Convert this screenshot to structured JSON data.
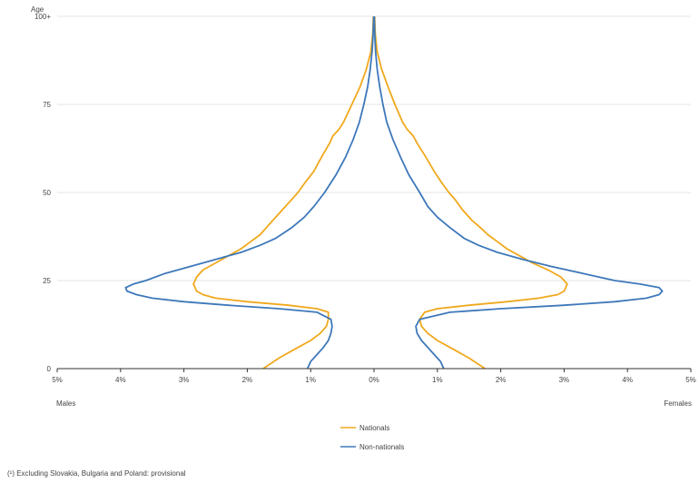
{
  "chart_data": {
    "type": "line",
    "title": "",
    "y_axis_title": "Age",
    "side_labels": {
      "left": "Males",
      "right": "Females"
    },
    "x_range_percent": [
      -5,
      5
    ],
    "y_range_age": [
      0,
      100
    ],
    "x_tick_labels": [
      "5%",
      "4%",
      "3%",
      "2%",
      "1%",
      "0%",
      "1%",
      "2%",
      "3%",
      "4%",
      "5%"
    ],
    "y_ticks": [
      {
        "value": 0,
        "label": "0"
      },
      {
        "value": 25,
        "label": "25"
      },
      {
        "value": 50,
        "label": "50"
      },
      {
        "value": 75,
        "label": "75"
      },
      {
        "value": 100,
        "label": "100+"
      }
    ],
    "grid": true,
    "legend_position": "bottom-center",
    "series": [
      {
        "name": "Nationals",
        "color": "#F0A81C",
        "males": [
          [
            0,
            -1.75
          ],
          [
            3,
            -1.5
          ],
          [
            6,
            -1.2
          ],
          [
            8,
            -1.0
          ],
          [
            10,
            -0.85
          ],
          [
            12,
            -0.75
          ],
          [
            14,
            -0.72
          ],
          [
            16,
            -0.72
          ],
          [
            17,
            -0.9
          ],
          [
            18,
            -1.35
          ],
          [
            19,
            -2.0
          ],
          [
            20,
            -2.5
          ],
          [
            21,
            -2.7
          ],
          [
            22,
            -2.8
          ],
          [
            24,
            -2.85
          ],
          [
            26,
            -2.8
          ],
          [
            28,
            -2.7
          ],
          [
            30,
            -2.5
          ],
          [
            32,
            -2.3
          ],
          [
            34,
            -2.1
          ],
          [
            36,
            -1.95
          ],
          [
            38,
            -1.8
          ],
          [
            40,
            -1.7
          ],
          [
            42,
            -1.6
          ],
          [
            45,
            -1.45
          ],
          [
            48,
            -1.3
          ],
          [
            50,
            -1.2
          ],
          [
            53,
            -1.08
          ],
          [
            56,
            -0.95
          ],
          [
            60,
            -0.83
          ],
          [
            64,
            -0.7
          ],
          [
            66,
            -0.65
          ],
          [
            68,
            -0.55
          ],
          [
            70,
            -0.48
          ],
          [
            75,
            -0.35
          ],
          [
            80,
            -0.22
          ],
          [
            85,
            -0.12
          ],
          [
            90,
            -0.05
          ],
          [
            95,
            -0.02
          ],
          [
            100,
            -0.01
          ]
        ],
        "females": [
          [
            0,
            1.75
          ],
          [
            3,
            1.5
          ],
          [
            6,
            1.2
          ],
          [
            8,
            1.0
          ],
          [
            10,
            0.85
          ],
          [
            12,
            0.75
          ],
          [
            14,
            0.72
          ],
          [
            16,
            0.8
          ],
          [
            17,
            1.0
          ],
          [
            18,
            1.5
          ],
          [
            19,
            2.1
          ],
          [
            20,
            2.6
          ],
          [
            21,
            2.9
          ],
          [
            22,
            3.0
          ],
          [
            24,
            3.05
          ],
          [
            26,
            2.95
          ],
          [
            28,
            2.75
          ],
          [
            30,
            2.5
          ],
          [
            32,
            2.3
          ],
          [
            34,
            2.1
          ],
          [
            36,
            1.95
          ],
          [
            38,
            1.8
          ],
          [
            40,
            1.68
          ],
          [
            42,
            1.55
          ],
          [
            45,
            1.4
          ],
          [
            48,
            1.28
          ],
          [
            50,
            1.18
          ],
          [
            53,
            1.06
          ],
          [
            56,
            0.95
          ],
          [
            60,
            0.82
          ],
          [
            64,
            0.68
          ],
          [
            66,
            0.62
          ],
          [
            68,
            0.52
          ],
          [
            70,
            0.45
          ],
          [
            75,
            0.33
          ],
          [
            80,
            0.22
          ],
          [
            85,
            0.12
          ],
          [
            90,
            0.05
          ],
          [
            95,
            0.02
          ],
          [
            100,
            0.01
          ]
        ]
      },
      {
        "name": "Non-nationals",
        "color": "#3E78BA",
        "males": [
          [
            0,
            -1.05
          ],
          [
            2,
            -1.0
          ],
          [
            4,
            -0.9
          ],
          [
            6,
            -0.8
          ],
          [
            8,
            -0.72
          ],
          [
            10,
            -0.68
          ],
          [
            12,
            -0.66
          ],
          [
            14,
            -0.68
          ],
          [
            16,
            -0.9
          ],
          [
            17,
            -1.5
          ],
          [
            18,
            -2.3
          ],
          [
            19,
            -3.0
          ],
          [
            20,
            -3.5
          ],
          [
            21,
            -3.75
          ],
          [
            22,
            -3.9
          ],
          [
            23,
            -3.92
          ],
          [
            24,
            -3.8
          ],
          [
            25,
            -3.6
          ],
          [
            27,
            -3.3
          ],
          [
            29,
            -2.9
          ],
          [
            31,
            -2.5
          ],
          [
            33,
            -2.1
          ],
          [
            35,
            -1.8
          ],
          [
            37,
            -1.55
          ],
          [
            40,
            -1.3
          ],
          [
            43,
            -1.1
          ],
          [
            46,
            -0.95
          ],
          [
            50,
            -0.78
          ],
          [
            55,
            -0.6
          ],
          [
            60,
            -0.45
          ],
          [
            65,
            -0.33
          ],
          [
            70,
            -0.23
          ],
          [
            75,
            -0.16
          ],
          [
            80,
            -0.1
          ],
          [
            85,
            -0.06
          ],
          [
            90,
            -0.03
          ],
          [
            95,
            -0.015
          ],
          [
            100,
            -0.005
          ]
        ],
        "females": [
          [
            0,
            1.1
          ],
          [
            2,
            1.05
          ],
          [
            4,
            0.95
          ],
          [
            6,
            0.85
          ],
          [
            8,
            0.75
          ],
          [
            10,
            0.68
          ],
          [
            12,
            0.66
          ],
          [
            14,
            0.72
          ],
          [
            16,
            1.2
          ],
          [
            17,
            2.0
          ],
          [
            18,
            3.0
          ],
          [
            19,
            3.8
          ],
          [
            20,
            4.3
          ],
          [
            21,
            4.5
          ],
          [
            22,
            4.55
          ],
          [
            23,
            4.5
          ],
          [
            24,
            4.2
          ],
          [
            25,
            3.8
          ],
          [
            27,
            3.3
          ],
          [
            29,
            2.8
          ],
          [
            31,
            2.35
          ],
          [
            33,
            1.95
          ],
          [
            35,
            1.65
          ],
          [
            37,
            1.42
          ],
          [
            40,
            1.2
          ],
          [
            43,
            1.0
          ],
          [
            46,
            0.85
          ],
          [
            50,
            0.72
          ],
          [
            55,
            0.55
          ],
          [
            60,
            0.42
          ],
          [
            65,
            0.3
          ],
          [
            70,
            0.2
          ],
          [
            75,
            0.14
          ],
          [
            80,
            0.09
          ],
          [
            85,
            0.05
          ],
          [
            90,
            0.025
          ],
          [
            95,
            0.012
          ],
          [
            100,
            0.005
          ]
        ]
      }
    ],
    "footnote": "(¹) Excluding Slovakia, Bulgaria and Poland: provisional"
  }
}
